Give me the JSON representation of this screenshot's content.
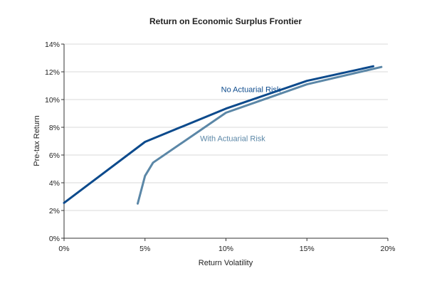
{
  "chart_data": {
    "type": "line",
    "title": "Return on Economic Surplus Frontier",
    "xlabel": "Return Volatility",
    "ylabel": "Pre-tax Return",
    "xlim": [
      0,
      20
    ],
    "ylim": [
      0,
      14
    ],
    "x_ticks": [
      0,
      5,
      10,
      15,
      20
    ],
    "y_ticks": [
      0,
      2,
      4,
      6,
      8,
      10,
      12,
      14
    ],
    "x_tick_labels": [
      "0%",
      "5%",
      "10%",
      "15%",
      "20%"
    ],
    "y_tick_labels": [
      "0%",
      "2%",
      "4%",
      "6%",
      "8%",
      "10%",
      "12%",
      "14%"
    ],
    "grid": {
      "horizontal": true,
      "vertical": false
    },
    "series": [
      {
        "name": "No Actuarial Risk",
        "color": "#0c4a8c",
        "points": [
          {
            "x": 0.0,
            "y": 2.55
          },
          {
            "x": 5.0,
            "y": 6.95
          },
          {
            "x": 10.0,
            "y": 9.35
          },
          {
            "x": 15.0,
            "y": 11.35
          },
          {
            "x": 19.1,
            "y": 12.4
          }
        ]
      },
      {
        "name": "With Actuarial Risk",
        "color": "#5b87a7",
        "points": [
          {
            "x": 4.55,
            "y": 2.5
          },
          {
            "x": 5.0,
            "y": 4.5
          },
          {
            "x": 5.5,
            "y": 5.45
          },
          {
            "x": 10.0,
            "y": 9.05
          },
          {
            "x": 15.0,
            "y": 11.1
          },
          {
            "x": 19.6,
            "y": 12.35
          }
        ]
      }
    ],
    "annotations": [
      {
        "text": "No Actuarial Risk",
        "x": 9.7,
        "y": 10.55,
        "series": 0
      },
      {
        "text": "With Actuarial Risk",
        "x": 8.4,
        "y": 7.0,
        "series": 1
      }
    ]
  }
}
